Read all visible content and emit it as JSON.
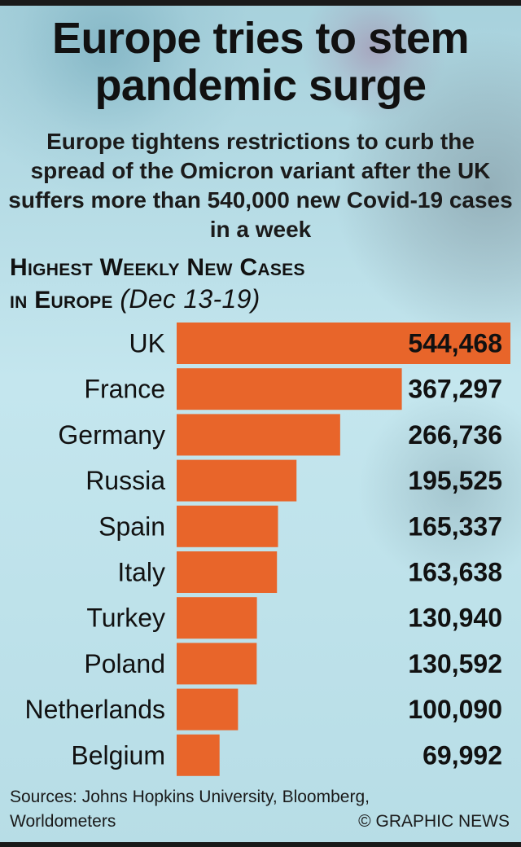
{
  "header": {
    "title": "Europe tries to stem pandemic surge",
    "subtitle": "Europe tightens restrictions to curb the spread of the Omicron variant after the UK suffers more than 540,000 new Covid-19 cases in a week"
  },
  "chart_heading": {
    "line1": "Highest Weekly New Cases",
    "line2": "in Europe",
    "dates": "(Dec 13-19)"
  },
  "chart_data": {
    "type": "bar",
    "orientation": "horizontal",
    "categories": [
      "UK",
      "France",
      "Germany",
      "Russia",
      "Spain",
      "Italy",
      "Turkey",
      "Poland",
      "Netherlands",
      "Belgium"
    ],
    "values": [
      544468,
      367297,
      266736,
      195525,
      165337,
      163638,
      130940,
      130592,
      100090,
      69992
    ],
    "value_labels": [
      "544,468",
      "367,297",
      "266,736",
      "195,525",
      "165,337",
      "163,638",
      "130,940",
      "130,592",
      "100,090",
      "69,992"
    ],
    "title": "Highest Weekly New Cases in Europe (Dec 13-19)",
    "bar_color": "#e8652a",
    "xlim": [
      0,
      544468
    ],
    "grid": false,
    "legend": "none"
  },
  "footer": {
    "sources": "Sources: Johns Hopkins University, Bloomberg, Worldometers",
    "credit": "© GRAPHIC NEWS"
  }
}
